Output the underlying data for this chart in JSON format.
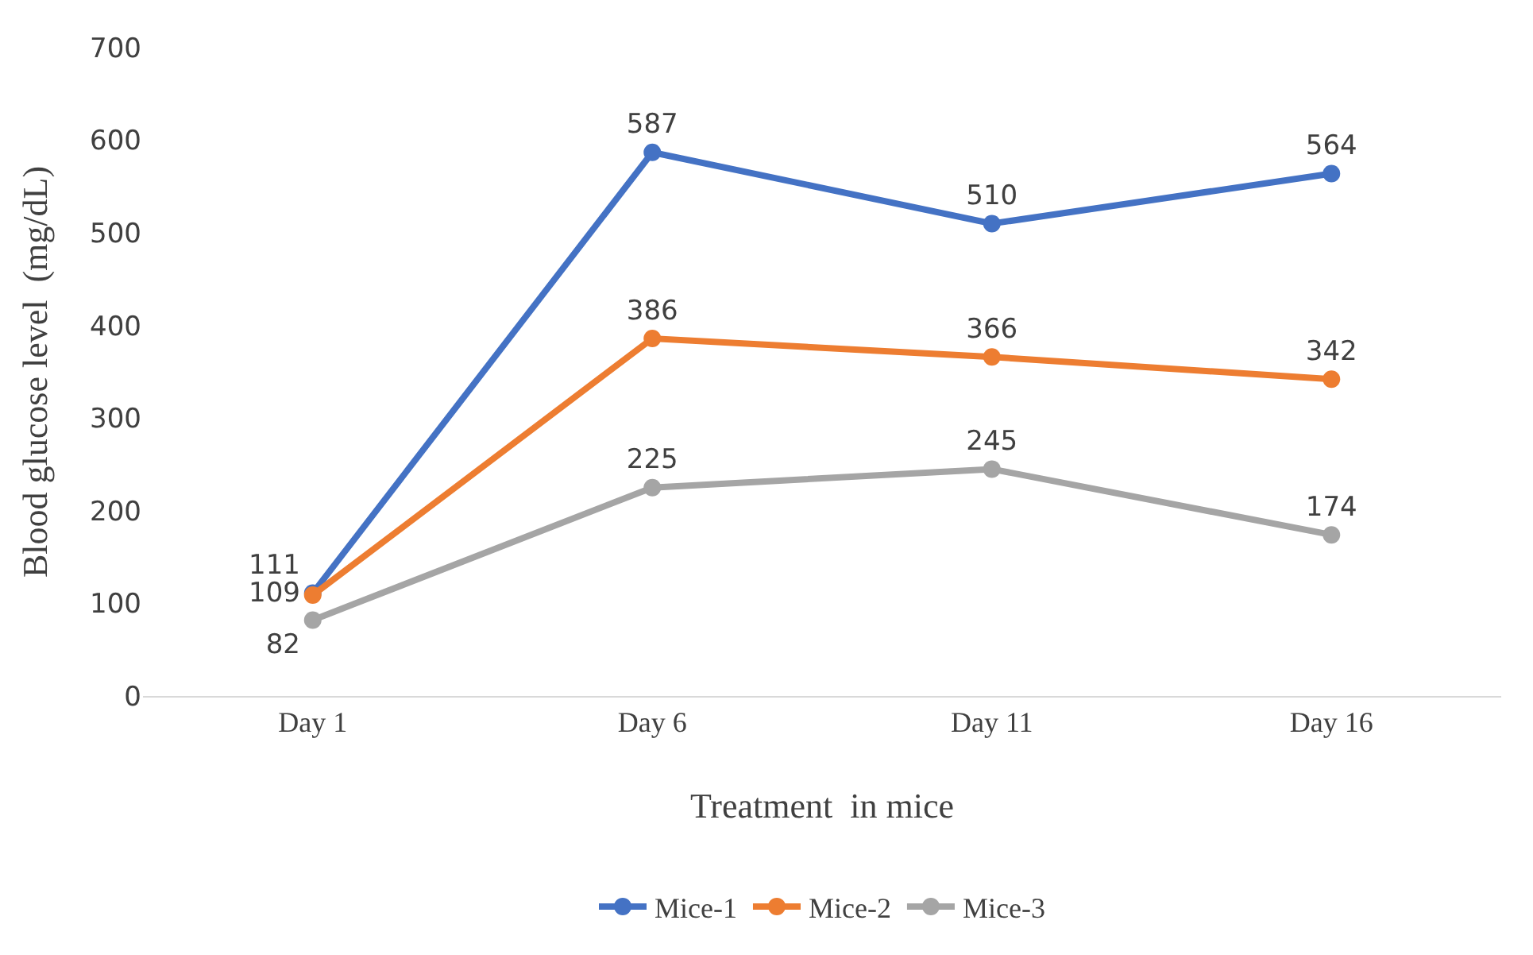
{
  "chart_data": {
    "type": "line",
    "xlabel": "Treatment  in mice",
    "ylabel": "Blood glucose level  (mg/dL)",
    "categories": [
      "Day 1",
      "Day 6",
      "Day 11",
      "Day 16"
    ],
    "series": [
      {
        "name": "Mice-1",
        "color": "#4472c4",
        "values": [
          111,
          587,
          510,
          564
        ]
      },
      {
        "name": "Mice-2",
        "color": "#ed7d31",
        "values": [
          109,
          386,
          366,
          342
        ]
      },
      {
        "name": "Mice-3",
        "color": "#a5a5a5",
        "values": [
          82,
          225,
          245,
          174
        ]
      }
    ],
    "ylim": [
      0,
      700
    ],
    "yticks": [
      0,
      100,
      200,
      300,
      400,
      500,
      600,
      700
    ],
    "data_labels": true,
    "marker": "circle",
    "line_style": "solid",
    "grid": false,
    "legend": "bottom"
  }
}
